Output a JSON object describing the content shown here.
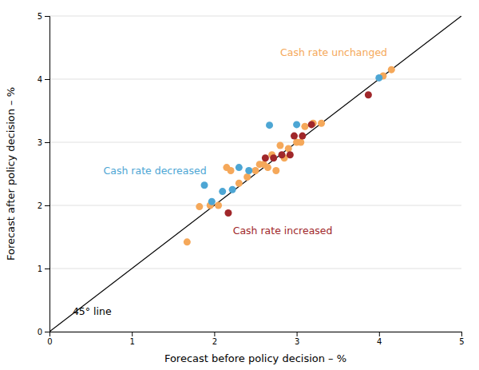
{
  "chart_data": {
    "type": "scatter",
    "x_label": "Forecast before policy decision – %",
    "y_label": "Forecast after policy decision – %",
    "xlim": [
      0,
      5
    ],
    "ylim": [
      0,
      5
    ],
    "xticks": [
      0,
      1,
      2,
      3,
      4,
      5
    ],
    "yticks": [
      0,
      1,
      2,
      3,
      4,
      5
    ],
    "grid": "y",
    "series": [
      {
        "type": "line",
        "color": "#000000",
        "x": [
          0,
          5
        ],
        "values": [
          0,
          5
        ]
      },
      {
        "type": "scatter",
        "color": "#F5A85A",
        "x": [
          1.67,
          1.82,
          1.95,
          2.05,
          2.15,
          2.2,
          2.3,
          2.4,
          2.5,
          2.55,
          2.6,
          2.65,
          2.7,
          2.75,
          2.8,
          2.85,
          2.9,
          3.0,
          3.05,
          3.1,
          3.2,
          3.3,
          4.05,
          4.15
        ],
        "values": [
          1.42,
          1.98,
          2.0,
          2.0,
          2.6,
          2.55,
          2.35,
          2.45,
          2.55,
          2.65,
          2.65,
          2.6,
          2.8,
          2.55,
          2.95,
          2.75,
          2.9,
          3.0,
          3.0,
          3.25,
          3.3,
          3.3,
          4.05,
          4.15
        ]
      },
      {
        "type": "scatter",
        "color": "#A0272A",
        "x": [
          2.17,
          2.62,
          2.72,
          2.82,
          2.92,
          2.97,
          3.07,
          3.18,
          3.87
        ],
        "values": [
          1.88,
          2.75,
          2.75,
          2.8,
          2.8,
          3.1,
          3.1,
          3.28,
          3.75
        ]
      },
      {
        "type": "scatter",
        "color": "#4DA6D4",
        "x": [
          1.88,
          1.97,
          2.1,
          2.22,
          2.3,
          2.42,
          2.67,
          3.0,
          4.0
        ],
        "values": [
          2.32,
          2.06,
          2.22,
          2.25,
          2.6,
          2.55,
          3.27,
          3.28,
          4.02
        ]
      }
    ],
    "annotations": [
      {
        "text": "Cash rate unchanged",
        "x": 3.45,
        "y": 4.42,
        "color": "#F5A85A"
      },
      {
        "text": "Cash rate decreased",
        "x": 1.28,
        "y": 2.55,
        "color": "#4DA6D4"
      },
      {
        "text": "Cash rate increased",
        "x": 2.83,
        "y": 1.6,
        "color": "#A0272A"
      },
      {
        "text": "45° line",
        "x": 0.28,
        "y": 0.22,
        "color": "#000000",
        "anchor": "start"
      }
    ]
  }
}
